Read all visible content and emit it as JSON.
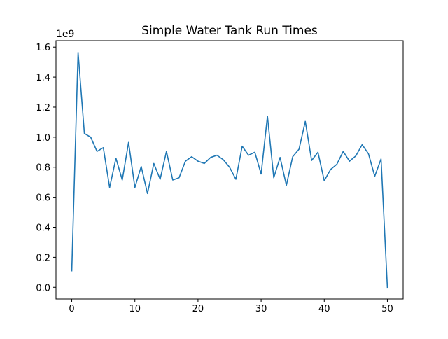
{
  "chart_data": {
    "type": "line",
    "title": "Simple Water Tank Run Times",
    "xlabel": "",
    "ylabel": "",
    "y_scale_label": "1e9",
    "xlim": [
      -2.5,
      52.5
    ],
    "ylim": [
      -0.078,
      1.643
    ],
    "x_ticks": [
      0,
      10,
      20,
      30,
      40,
      50
    ],
    "x_tick_labels": [
      "0",
      "10",
      "20",
      "30",
      "40",
      "50"
    ],
    "y_ticks": [
      0.0,
      0.2,
      0.4,
      0.6,
      0.8,
      1.0,
      1.2,
      1.4,
      1.6
    ],
    "y_tick_labels": [
      "0.0",
      "0.2",
      "0.4",
      "0.6",
      "0.8",
      "1.0",
      "1.2",
      "1.4",
      "1.6"
    ],
    "grid": false,
    "series": [
      {
        "name": "",
        "color": "#1f77b4",
        "x": [
          0,
          1,
          2,
          3,
          4,
          5,
          6,
          7,
          8,
          9,
          10,
          11,
          12,
          13,
          14,
          15,
          16,
          17,
          18,
          19,
          20,
          21,
          22,
          23,
          24,
          25,
          26,
          27,
          28,
          29,
          30,
          31,
          32,
          33,
          34,
          35,
          36,
          37,
          38,
          39,
          40,
          41,
          42,
          43,
          44,
          45,
          46,
          47,
          48,
          49,
          50
        ],
        "values": [
          0.11,
          1.565,
          1.025,
          1.0,
          0.905,
          0.93,
          0.665,
          0.86,
          0.715,
          0.965,
          0.665,
          0.805,
          0.625,
          0.825,
          0.72,
          0.905,
          0.715,
          0.73,
          0.84,
          0.87,
          0.84,
          0.825,
          0.865,
          0.88,
          0.85,
          0.8,
          0.72,
          0.94,
          0.88,
          0.9,
          0.755,
          1.14,
          0.73,
          0.865,
          0.68,
          0.87,
          0.92,
          1.105,
          0.845,
          0.9,
          0.71,
          0.785,
          0.82,
          0.905,
          0.84,
          0.875,
          0.95,
          0.89,
          0.74,
          0.855,
          0.0
        ]
      }
    ]
  }
}
